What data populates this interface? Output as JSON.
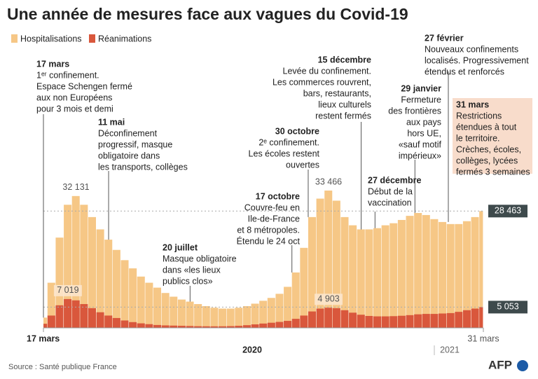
{
  "chart_data": {
    "type": "bar",
    "title": "Une année de mesures face aux vagues du Covid-19",
    "categories": [
      "17 mars",
      null,
      null,
      null,
      null,
      null,
      null,
      null,
      null,
      null,
      null,
      null,
      null,
      null,
      null,
      null,
      null,
      null,
      null,
      null,
      null,
      null,
      null,
      null,
      null,
      null,
      null,
      null,
      null,
      null,
      null,
      null,
      null,
      null,
      null,
      null,
      null,
      null,
      null,
      null,
      null,
      null,
      null,
      null,
      null,
      null,
      null,
      null,
      null,
      null,
      null,
      null,
      null,
      null,
      "31 mars"
    ],
    "year_labels": [
      "2020",
      "2021"
    ],
    "series": [
      {
        "name": "Hospitalisations",
        "color": "#f6c786",
        "values": [
          2500,
          11000,
          22000,
          30000,
          32131,
          30000,
          27000,
          24000,
          21500,
          19000,
          16500,
          14500,
          12500,
          11000,
          9800,
          8500,
          7600,
          6900,
          6400,
          5800,
          5300,
          4900,
          4700,
          4700,
          4900,
          5300,
          5900,
          6600,
          7300,
          8300,
          10000,
          13500,
          19500,
          27000,
          31500,
          33466,
          31000,
          27000,
          25000,
          24000,
          24000,
          24300,
          25000,
          25500,
          26300,
          27300,
          28000,
          27500,
          26500,
          25800,
          25300,
          25300,
          26000,
          27000,
          28463
        ],
        "value_labels": [
          null,
          null,
          null,
          null,
          "32 131",
          null,
          null,
          null,
          null,
          null,
          null,
          null,
          null,
          null,
          null,
          null,
          null,
          null,
          null,
          null,
          null,
          null,
          null,
          null,
          null,
          null,
          null,
          null,
          null,
          null,
          null,
          null,
          null,
          null,
          null,
          "33 466",
          null,
          null,
          null,
          null,
          null,
          null,
          null,
          null,
          null,
          null,
          null,
          null,
          null,
          null,
          null,
          null,
          null,
          null,
          "28 463"
        ]
      },
      {
        "name": "Réanimations",
        "color": "#d9573c",
        "values": [
          1000,
          3000,
          5500,
          7019,
          6700,
          5800,
          4800,
          3800,
          3000,
          2400,
          1800,
          1400,
          1100,
          900,
          700,
          600,
          550,
          500,
          450,
          400,
          380,
          370,
          380,
          420,
          500,
          650,
          850,
          1050,
          1250,
          1450,
          1700,
          2200,
          3000,
          4000,
          4700,
          4903,
          4800,
          4300,
          3700,
          3200,
          2900,
          2800,
          2800,
          2850,
          2950,
          3100,
          3300,
          3400,
          3400,
          3500,
          3600,
          3900,
          4300,
          4700,
          5053
        ],
        "value_labels": [
          null,
          null,
          null,
          "7 019",
          null,
          null,
          null,
          null,
          null,
          null,
          null,
          null,
          null,
          null,
          null,
          null,
          null,
          null,
          null,
          null,
          null,
          null,
          null,
          null,
          null,
          null,
          null,
          null,
          null,
          null,
          null,
          null,
          null,
          null,
          null,
          "4 903",
          null,
          null,
          null,
          null,
          null,
          null,
          null,
          null,
          null,
          null,
          null,
          null,
          null,
          null,
          null,
          null,
          null,
          null,
          "5 053"
        ]
      }
    ],
    "annotations": [
      {
        "title": "17 mars",
        "lines": [
          "1ᵉʳ confinement.",
          "Espace Schengen fermé",
          "aux non Européens",
          "pour 3 mois et demi"
        ]
      },
      {
        "title": "11 mai",
        "lines": [
          "Déconfinement",
          "progressif, masque",
          "obligatoire dans",
          "les transports, collèges"
        ]
      },
      {
        "title": "20 juillet",
        "lines": [
          "Masque obligatoire",
          "dans «les lieux",
          "publics clos»"
        ]
      },
      {
        "title": "17 octobre",
        "lines": [
          "Couvre-feu en",
          "Ile-de-France",
          "et 8 métropoles.",
          "Étendu le 24 oct"
        ]
      },
      {
        "title": "30 octobre",
        "lines": [
          "2ᵉ confinement.",
          "Les écoles restent",
          "ouvertes"
        ]
      },
      {
        "title": "15 décembre",
        "lines": [
          "Levée du confinement.",
          "Les commerces rouvrent,",
          "bars, restaurants,",
          "lieux culturels",
          "restent fermés"
        ]
      },
      {
        "title": "27 décembre",
        "lines": [
          "Début de la",
          "vaccination"
        ]
      },
      {
        "title": "29 janvier",
        "lines": [
          "Fermeture",
          "des frontières",
          "aux pays",
          "hors UE,",
          "«sauf motif",
          "impérieux»"
        ]
      },
      {
        "title": "27 février",
        "lines": [
          "Nouveaux confinements",
          "localisés. Progressivement",
          "étendus et renforcés"
        ]
      },
      {
        "title": "31 mars",
        "lines": [
          "Restrictions",
          "étendues à tout",
          "le territoire.",
          "Crèches, écoles,",
          "collèges, lycées",
          "fermés 3 semaines"
        ]
      }
    ],
    "source": "Source : Santé publique France",
    "logo": "AFP"
  }
}
